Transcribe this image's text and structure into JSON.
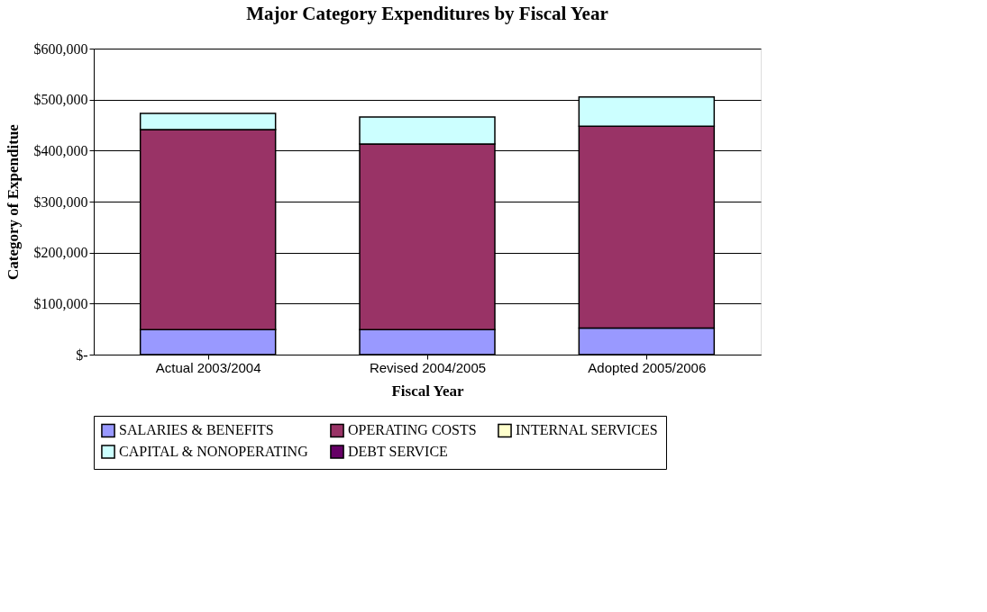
{
  "chart_data": {
    "type": "bar",
    "title": "Major Category Expenditures by Fiscal Year",
    "xlabel": "Fiscal Year",
    "ylabel": "Category of Expenditue",
    "categories": [
      "Actual    2003/2004",
      "Revised  2004/2005",
      "Adopted     2005/2006"
    ],
    "stacked": true,
    "series": [
      {
        "name": "SALARIES & BENEFITS",
        "color": "#9999ff",
        "values": [
          49000,
          49000,
          52000
        ]
      },
      {
        "name": "OPERATING COSTS",
        "color": "#993366",
        "values": [
          392000,
          364000,
          396000
        ]
      },
      {
        "name": "INTERNAL SERVICES",
        "color": "#ffffcc",
        "values": [
          0,
          0,
          0
        ]
      },
      {
        "name": "CAPITAL & NONOPERATING",
        "color": "#ccffff",
        "values": [
          32000,
          53000,
          57000
        ]
      },
      {
        "name": "DEBT SERVICE",
        "color": "#660066",
        "values": [
          0,
          0,
          0
        ]
      }
    ],
    "ylim": [
      0,
      600000
    ],
    "yticks": [
      {
        "value": 0,
        "label": "$-"
      },
      {
        "value": 100000,
        "label": "$100,000"
      },
      {
        "value": 200000,
        "label": "$200,000"
      },
      {
        "value": 300000,
        "label": "$300,000"
      },
      {
        "value": 400000,
        "label": "$400,000"
      },
      {
        "value": 500000,
        "label": "$500,000"
      },
      {
        "value": 600000,
        "label": "$600,000"
      }
    ],
    "grid": "y",
    "legend": "bottom"
  }
}
